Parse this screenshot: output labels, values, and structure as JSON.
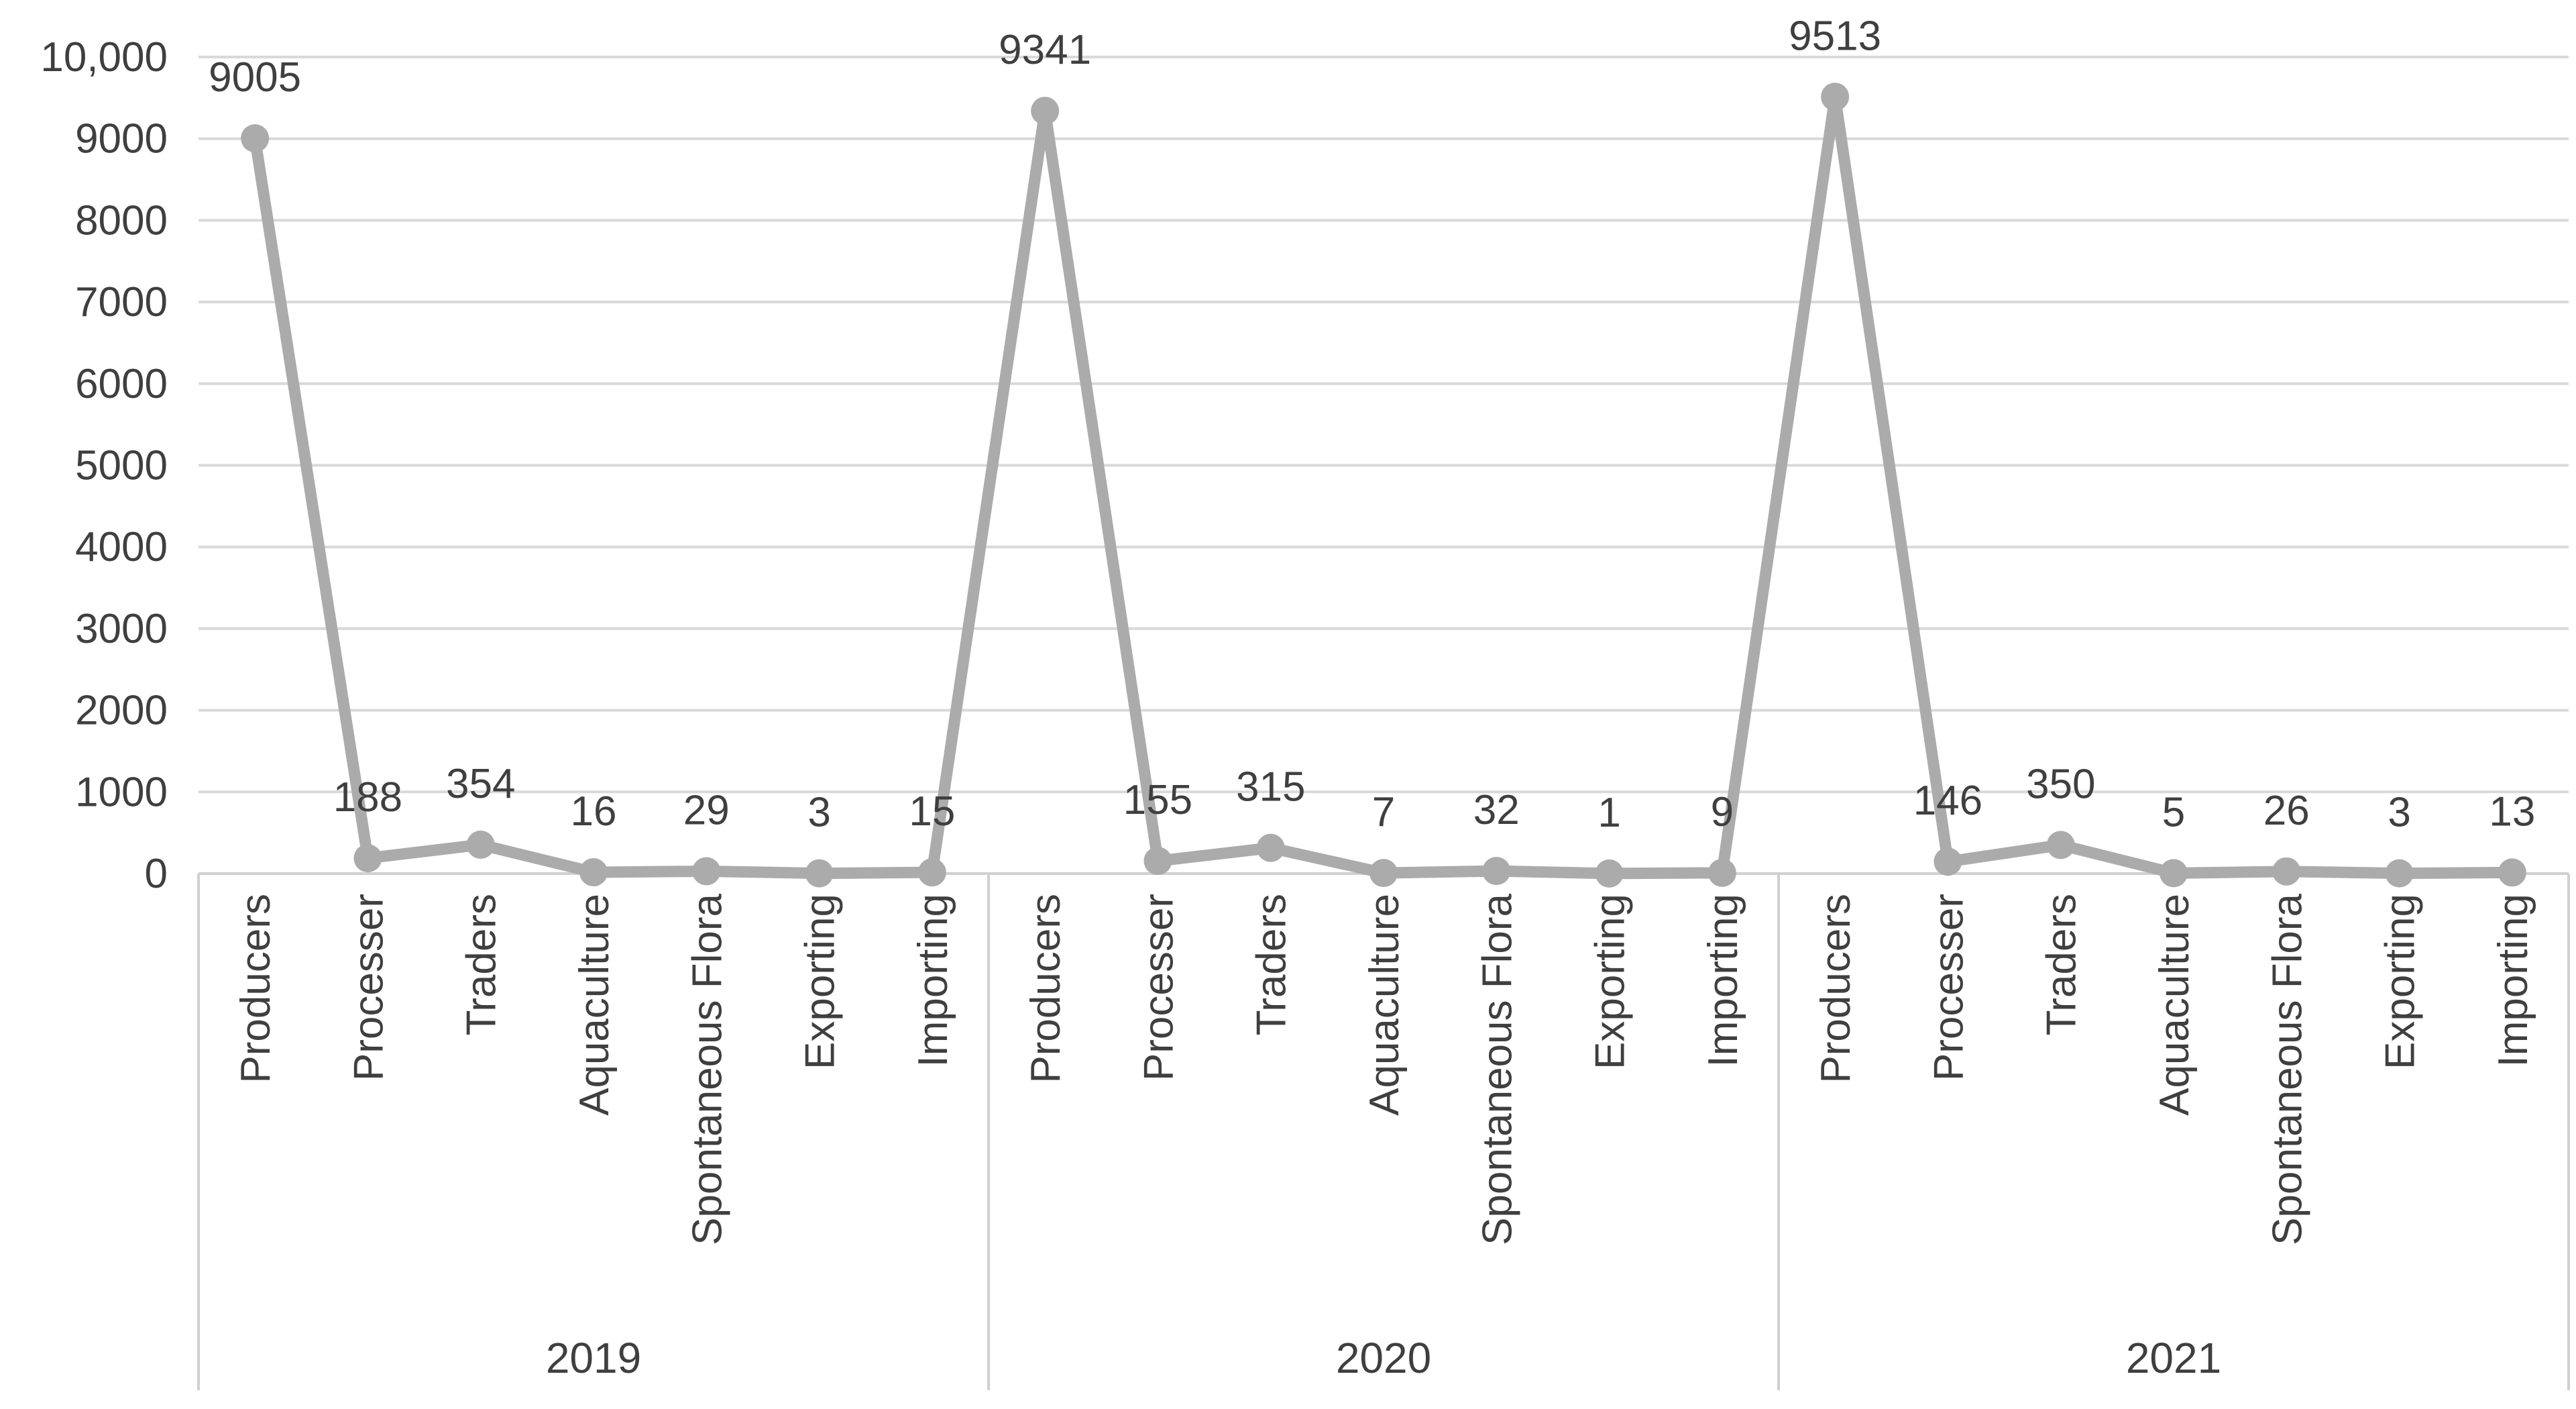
{
  "chart_data": {
    "type": "line",
    "title": "",
    "categories": [
      "Producers",
      "Processer",
      "Traders",
      "Aquaculture",
      "Spontaneous Flora",
      "Exporting",
      "Importing"
    ],
    "groups": [
      {
        "year": "2019",
        "values": [
          9005,
          188,
          354,
          16,
          29,
          3,
          15
        ]
      },
      {
        "year": "2020",
        "values": [
          9341,
          155,
          315,
          7,
          32,
          1,
          9
        ]
      },
      {
        "year": "2021",
        "values": [
          9513,
          146,
          350,
          5,
          26,
          3,
          13
        ]
      }
    ],
    "data_labels": [
      "9005",
      "188",
      "354",
      "16",
      "29",
      "3",
      "15",
      "9341",
      "155",
      "315",
      "7",
      "32",
      "1",
      "9",
      "9513",
      "146",
      "350",
      "5",
      "26",
      "3",
      "13"
    ],
    "y_axis": {
      "min": 0,
      "max": 10000,
      "step": 1000,
      "tick_labels": [
        "0",
        "1000",
        "2000",
        "3000",
        "4000",
        "5000",
        "6000",
        "7000",
        "8000",
        "9000",
        "10,000"
      ]
    },
    "x_axis": {
      "levels": 2,
      "level1_repeated_per_group": true
    },
    "grid": true,
    "legend_position": "none",
    "colors": {
      "series": "#ababab",
      "gridline": "#d9d9d9",
      "axis_line": "#d0d0d0",
      "text": "#3f3f3f",
      "background": "#ffffff"
    }
  }
}
